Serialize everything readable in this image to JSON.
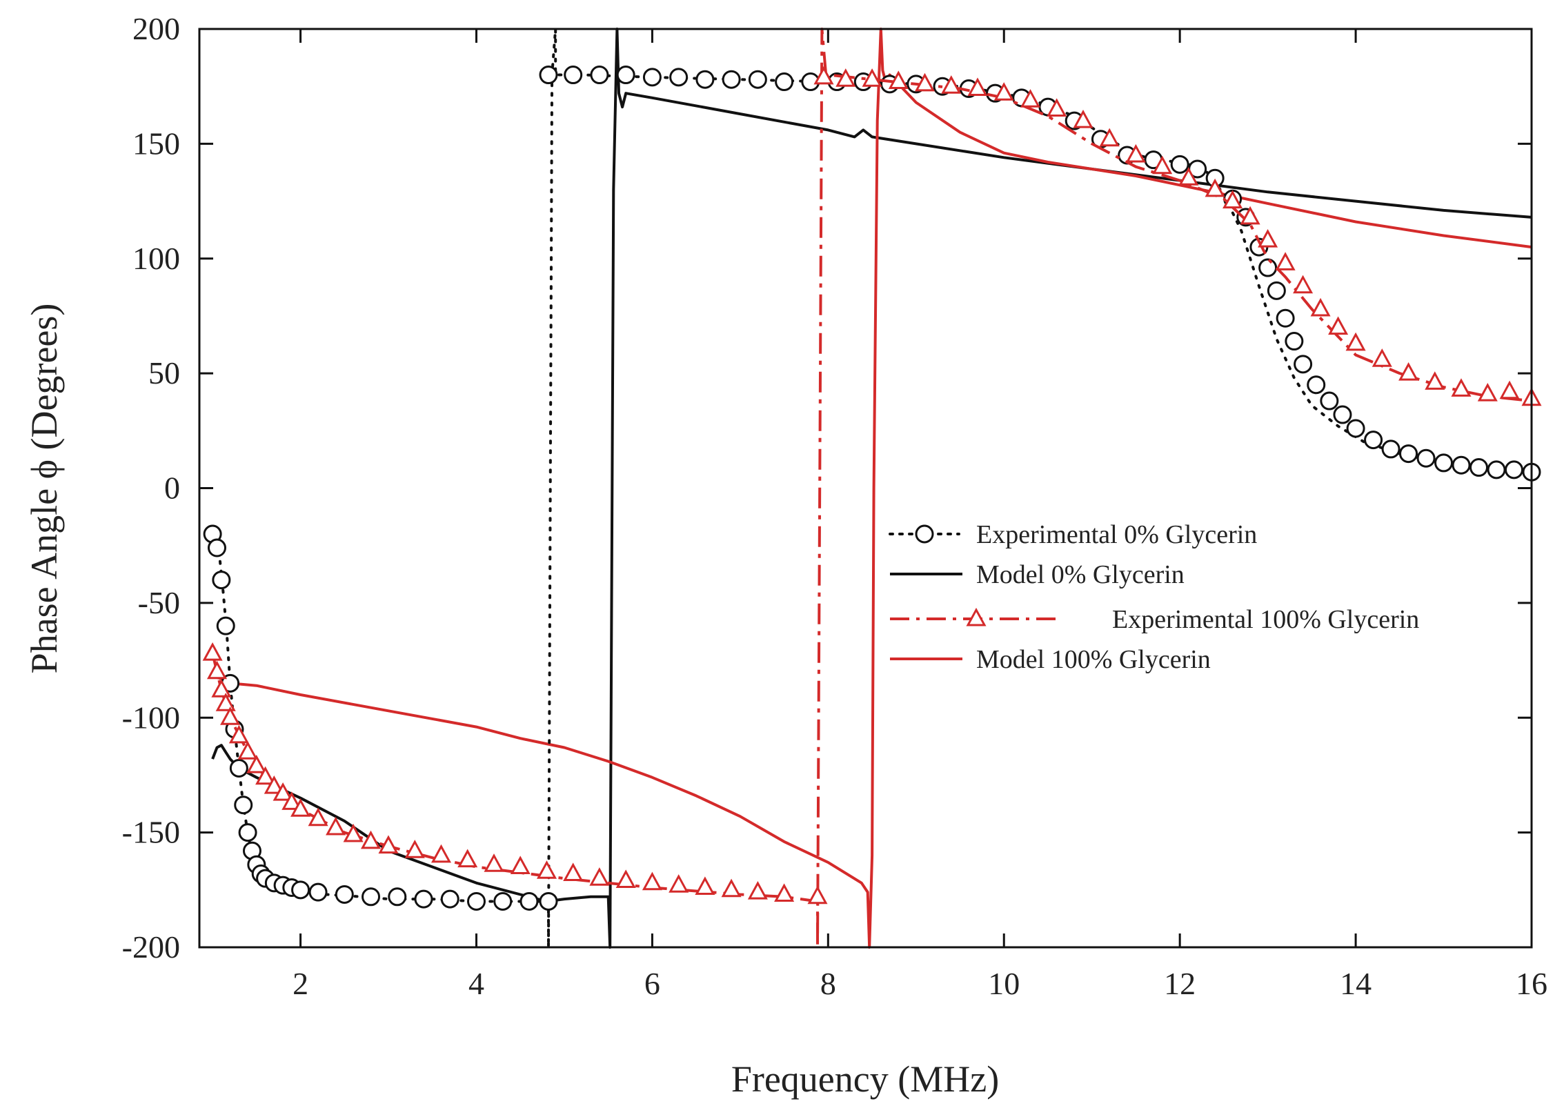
{
  "chart_data": {
    "type": "line",
    "title": "",
    "xlabel": "Frequency (MHz)",
    "ylabel": "Phase Angle ϕ (Degrees)",
    "xlim": [
      0.85,
      16
    ],
    "ylim": [
      -200,
      200
    ],
    "xticks": [
      2,
      4,
      6,
      8,
      10,
      12,
      14,
      16
    ],
    "yticks": [
      -200,
      -150,
      -100,
      -50,
      0,
      50,
      100,
      150,
      200
    ],
    "legend_position": "center-right",
    "series": [
      {
        "name": "Experimental 0% Glycerin",
        "color": "#111111",
        "line": "dotted",
        "marker": "circle",
        "x": [
          1.0,
          1.04,
          1.08,
          1.12,
          1.16,
          1.2,
          1.25,
          1.3,
          1.35,
          1.4,
          1.45,
          1.5,
          1.6,
          1.7,
          1.85,
          2.0,
          2.3,
          2.7,
          3.0,
          3.5,
          4.0,
          4.5,
          4.82,
          4.82,
          4.86,
          4.9,
          4.9,
          5.2,
          6.0,
          7.0,
          8.0,
          8.5,
          9.0,
          9.5,
          10.0,
          10.4,
          10.8,
          11.2,
          11.5,
          11.8,
          12.1,
          12.3,
          12.5,
          12.7,
          12.9,
          13.1,
          13.3,
          13.5,
          13.8,
          14.1,
          14.5,
          15.0,
          15.5,
          16.0
        ],
        "y": [
          -20,
          -22,
          -30,
          -45,
          -62,
          -85,
          -105,
          -122,
          -138,
          -150,
          -160,
          -166,
          -170,
          -172,
          -174,
          -175,
          -177,
          -178,
          -179,
          -179,
          -180,
          -180,
          -180,
          -200,
          180,
          200,
          180,
          180,
          179,
          178,
          177,
          177,
          176,
          175,
          172,
          168,
          162,
          152,
          145,
          143,
          141,
          138,
          128,
          112,
          88,
          65,
          48,
          36,
          27,
          20,
          15,
          11,
          9,
          7
        ],
        "markers_x": [
          1.0,
          1.05,
          1.1,
          1.15,
          1.2,
          1.25,
          1.3,
          1.35,
          1.4,
          1.45,
          1.5,
          1.55,
          1.6,
          1.7,
          1.8,
          1.9,
          2.0,
          2.2,
          2.5,
          2.8,
          3.1,
          3.4,
          3.7,
          4.0,
          4.3,
          4.6,
          4.82,
          4.82,
          5.1,
          5.4,
          5.7,
          6.0,
          6.3,
          6.6,
          6.9,
          7.2,
          7.5,
          7.8,
          8.1,
          8.4,
          8.7,
          9.0,
          9.3,
          9.6,
          9.9,
          10.2,
          10.5,
          10.8,
          11.1,
          11.4,
          11.7,
          12.0,
          12.2,
          12.4,
          12.6,
          12.75,
          12.9,
          13.0,
          13.1,
          13.2,
          13.3,
          13.4,
          13.55,
          13.7,
          13.85,
          14.0,
          14.2,
          14.4,
          14.6,
          14.8,
          15.0,
          15.2,
          15.4,
          15.6,
          15.8,
          16.0
        ],
        "markers_y": [
          -20,
          -26,
          -40,
          -60,
          -85,
          -105,
          -122,
          -138,
          -150,
          -158,
          -164,
          -168,
          -170,
          -172,
          -173,
          -174,
          -175,
          -176,
          -177,
          -178,
          -178,
          -179,
          -179,
          -180,
          -180,
          -180,
          -180,
          180,
          180,
          180,
          180,
          179,
          179,
          178,
          178,
          178,
          177,
          177,
          177,
          177,
          176,
          176,
          175,
          174,
          172,
          170,
          166,
          160,
          152,
          145,
          143,
          141,
          139,
          135,
          126,
          118,
          105,
          96,
          86,
          74,
          64,
          54,
          45,
          38,
          32,
          26,
          21,
          17,
          15,
          13,
          11,
          10,
          9,
          8,
          8,
          7
        ]
      },
      {
        "name": "Model 0% Glycerin",
        "color": "#111111",
        "line": "solid",
        "marker": "none",
        "x": [
          1.0,
          1.05,
          1.1,
          1.15,
          1.2,
          1.3,
          1.5,
          2.0,
          2.5,
          3.0,
          3.5,
          4.0,
          4.5,
          4.8,
          5.0,
          5.3,
          5.5,
          5.52,
          5.56,
          5.6,
          5.62,
          5.66,
          5.7,
          6.0,
          7.0,
          8.0,
          8.3,
          8.4,
          8.5,
          9.0,
          10.0,
          11.0,
          12.0,
          13.0,
          14.0,
          15.0,
          16.0
        ],
        "y": [
          -118,
          -113,
          -112,
          -115,
          -118,
          -122,
          -126,
          -135,
          -145,
          -158,
          -165,
          -172,
          -177,
          -180,
          -179,
          -178,
          -178,
          -200,
          130,
          200,
          172,
          166,
          172,
          170,
          163,
          156,
          153,
          156,
          153,
          150,
          144,
          139,
          134,
          129,
          125,
          121,
          118
        ]
      },
      {
        "name": "Experimental 100% Glycerin",
        "color": "#d42a2a",
        "line": "dashdot",
        "marker": "triangle",
        "x": [
          1.0,
          1.1,
          1.2,
          1.4,
          1.6,
          1.8,
          2.0,
          2.5,
          3.0,
          3.5,
          4.0,
          5.0,
          6.0,
          7.0,
          7.5,
          7.88,
          7.88,
          7.93,
          7.98,
          8.0,
          8.5,
          9.0,
          9.5,
          10.0,
          10.5,
          11.0,
          11.5,
          12.0,
          12.5,
          12.8,
          13.0,
          13.2,
          13.5,
          13.8,
          14.0,
          14.5,
          15.0,
          15.5,
          16.0
        ],
        "y": [
          -72,
          -88,
          -100,
          -115,
          -126,
          -133,
          -140,
          -150,
          -156,
          -161,
          -165,
          -170,
          -174,
          -177,
          -178,
          -180,
          -200,
          200,
          178,
          180,
          178,
          176,
          174,
          170,
          162,
          150,
          140,
          134,
          126,
          115,
          100,
          92,
          78,
          66,
          58,
          50,
          44,
          40,
          38
        ],
        "markers_x": [
          1.0,
          1.05,
          1.1,
          1.15,
          1.2,
          1.3,
          1.4,
          1.5,
          1.6,
          1.7,
          1.8,
          1.9,
          2.0,
          2.2,
          2.4,
          2.6,
          2.8,
          3.0,
          3.3,
          3.6,
          3.9,
          4.2,
          4.5,
          4.8,
          5.1,
          5.4,
          5.7,
          6.0,
          6.3,
          6.6,
          6.9,
          7.2,
          7.5,
          7.88,
          7.95,
          8.2,
          8.5,
          8.8,
          9.1,
          9.4,
          9.7,
          10.0,
          10.3,
          10.6,
          10.9,
          11.2,
          11.5,
          11.8,
          12.1,
          12.4,
          12.6,
          12.8,
          13.0,
          13.2,
          13.4,
          13.6,
          13.8,
          14.0,
          14.3,
          14.6,
          14.9,
          15.2,
          15.5,
          15.75,
          16.0
        ],
        "markers_y": [
          -72,
          -80,
          -88,
          -94,
          -100,
          -108,
          -115,
          -121,
          -126,
          -130,
          -133,
          -137,
          -140,
          -144,
          -148,
          -151,
          -154,
          -156,
          -158,
          -160,
          -162,
          -164,
          -165,
          -167,
          -168,
          -170,
          -171,
          -172,
          -173,
          -174,
          -175,
          -176,
          -177,
          -178,
          179,
          178,
          178,
          177,
          176,
          175,
          174,
          172,
          169,
          165,
          160,
          152,
          145,
          140,
          135,
          130,
          125,
          118,
          108,
          98,
          88,
          78,
          70,
          63,
          56,
          50,
          46,
          43,
          41,
          42,
          39
        ]
      },
      {
        "name": "Model 100% Glycerin",
        "color": "#d42a2a",
        "line": "solid",
        "marker": "none",
        "x": [
          1.0,
          1.1,
          1.2,
          1.5,
          2.0,
          3.0,
          4.0,
          4.5,
          5.0,
          5.5,
          6.0,
          6.5,
          7.0,
          7.5,
          8.0,
          8.38,
          8.45,
          8.47,
          8.5,
          8.52,
          8.56,
          8.6,
          8.62,
          8.66,
          8.7,
          9.0,
          9.5,
          10.0,
          10.5,
          11.0,
          11.5,
          12.0,
          13.0,
          14.0,
          15.0,
          16.0
        ],
        "y": [
          -82,
          -83,
          -85,
          -86,
          -90,
          -97,
          -104,
          -109,
          -113,
          -119,
          -126,
          -134,
          -143,
          -154,
          -163,
          -172,
          -176,
          -200,
          -160,
          0,
          160,
          200,
          182,
          176,
          180,
          168,
          155,
          146,
          142,
          139,
          136,
          132,
          124,
          116,
          110,
          105
        ]
      }
    ]
  }
}
